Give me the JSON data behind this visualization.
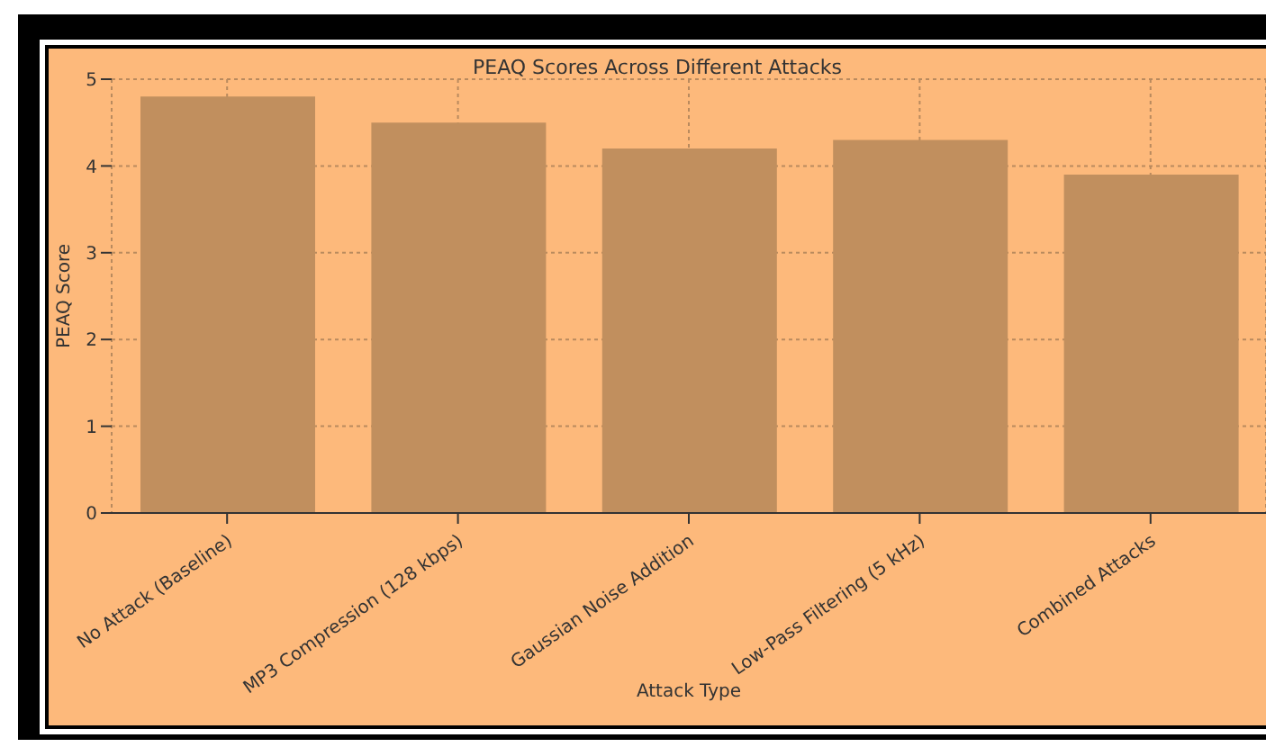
{
  "chart_data": {
    "type": "bar",
    "title": "PEAQ Scores Across Different Attacks",
    "xlabel": "Attack Type",
    "ylabel": "PEAQ Score",
    "categories": [
      "No Attack (Baseline)",
      "MP3 Compression (128 kbps)",
      "Gaussian Noise Addition",
      "Low-Pass Filtering (5 kHz)",
      "Combined Attacks"
    ],
    "values": [
      4.8,
      4.5,
      4.2,
      4.3,
      3.9
    ],
    "color": "#c18f5e",
    "ylim": [
      0,
      5
    ],
    "yticks": [
      0,
      1,
      2,
      3,
      4,
      5
    ],
    "grid": true
  }
}
